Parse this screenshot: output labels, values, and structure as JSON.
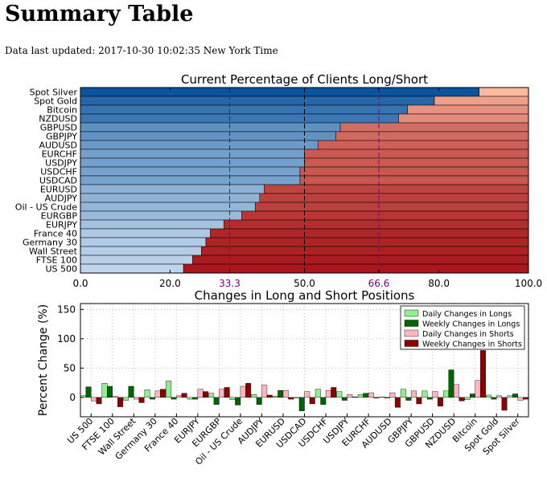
{
  "page": {
    "title": "Summary Table",
    "updated_label": "Data last updated:",
    "updated_value": "2017-10-30 10:02:35 New York Time"
  },
  "chart_data": [
    {
      "type": "bar",
      "orientation": "horizontal",
      "stacked": true,
      "title": "Current Percentage of Clients Long/Short",
      "categories": [
        "Spot Silver",
        "Spot Gold",
        "Bitcoin",
        "NZDUSD",
        "GBPUSD",
        "GBPJPY",
        "AUDUSD",
        "EURCHF",
        "USDJPY",
        "USDCHF",
        "USDCAD",
        "EURUSD",
        "AUDJPY",
        "Oil - US Crude",
        "EURGBP",
        "EURJPY",
        "France 40",
        "Germany 30",
        "Wall Street",
        "FTSE 100",
        "US 500"
      ],
      "series": [
        {
          "values": [
            89,
            79,
            73,
            71,
            58,
            57,
            53,
            50,
            50,
            49,
            49,
            41,
            40,
            39,
            36,
            32,
            29,
            28,
            27,
            25,
            23
          ]
        },
        {
          "values": [
            11,
            21,
            27,
            29,
            42,
            43,
            47,
            50,
            50,
            51,
            51,
            59,
            60,
            61,
            64,
            68,
            71,
            72,
            73,
            75,
            77
          ]
        }
      ],
      "xlim": [
        0,
        100
      ],
      "xticks": [
        "0.0",
        "20.0",
        "33.3",
        "50.0",
        "66.6",
        "80.0",
        "100.0"
      ],
      "reference_lines": [
        33.3,
        50,
        66.6
      ],
      "colors": {
        "long_dark": "#08519c",
        "long_light": "#c6dbef",
        "short_light": "#fcbba1",
        "short_dark": "#a50f15",
        "highlight_ticks": "#800080"
      }
    },
    {
      "type": "bar",
      "title": "Changes in Long and Short Positions",
      "ylabel": "Percent Change (%)",
      "ylim": [
        -33,
        160
      ],
      "yticks": [
        0,
        50,
        100,
        150
      ],
      "categories": [
        "US 500",
        "FTSE 100",
        "Wall Street",
        "Germany 30",
        "France 40",
        "EURJPY",
        "EURGBP",
        "Oil - US Crude",
        "AUDJPY",
        "EURUSD",
        "USDCAD",
        "USDCHF",
        "USDJPY",
        "EURCHF",
        "AUDUSD",
        "GBPJPY",
        "GBPUSD",
        "NZDUSD",
        "Bitcoin",
        "Spot Gold",
        "Spot Silver"
      ],
      "legend_position": "top-right",
      "grid": true,
      "series": [
        {
          "name": "Daily Changes in Longs",
          "color": "#90ee90",
          "values": [
            3,
            24,
            -5,
            13,
            28,
            -3,
            7,
            -4,
            5,
            2,
            0,
            14,
            10,
            5,
            1,
            14,
            11,
            11,
            -4,
            4,
            3
          ]
        },
        {
          "name": "Weekly Changes in Longs",
          "color": "#006400",
          "values": [
            18,
            19,
            19,
            -3,
            -3,
            -3,
            -12,
            -13,
            -12,
            12,
            -23,
            -12,
            -5,
            7,
            -1,
            -5,
            -3,
            47,
            6,
            -3,
            6
          ]
        },
        {
          "name": "Daily Changes in Shorts",
          "color": "#ffb6c1",
          "values": [
            -6,
            2,
            -3,
            11,
            3,
            14,
            14,
            19,
            21,
            12,
            10,
            12,
            5,
            8,
            8,
            11,
            10,
            22,
            29,
            3,
            -5
          ]
        },
        {
          "name": "Weekly Changes in Shorts",
          "color": "#8b0000",
          "values": [
            -11,
            -16,
            -9,
            14,
            7,
            10,
            17,
            24,
            4,
            -3,
            -11,
            17,
            1,
            -1,
            -17,
            -11,
            -15,
            -6,
            80,
            -22,
            -3
          ]
        }
      ]
    }
  ]
}
